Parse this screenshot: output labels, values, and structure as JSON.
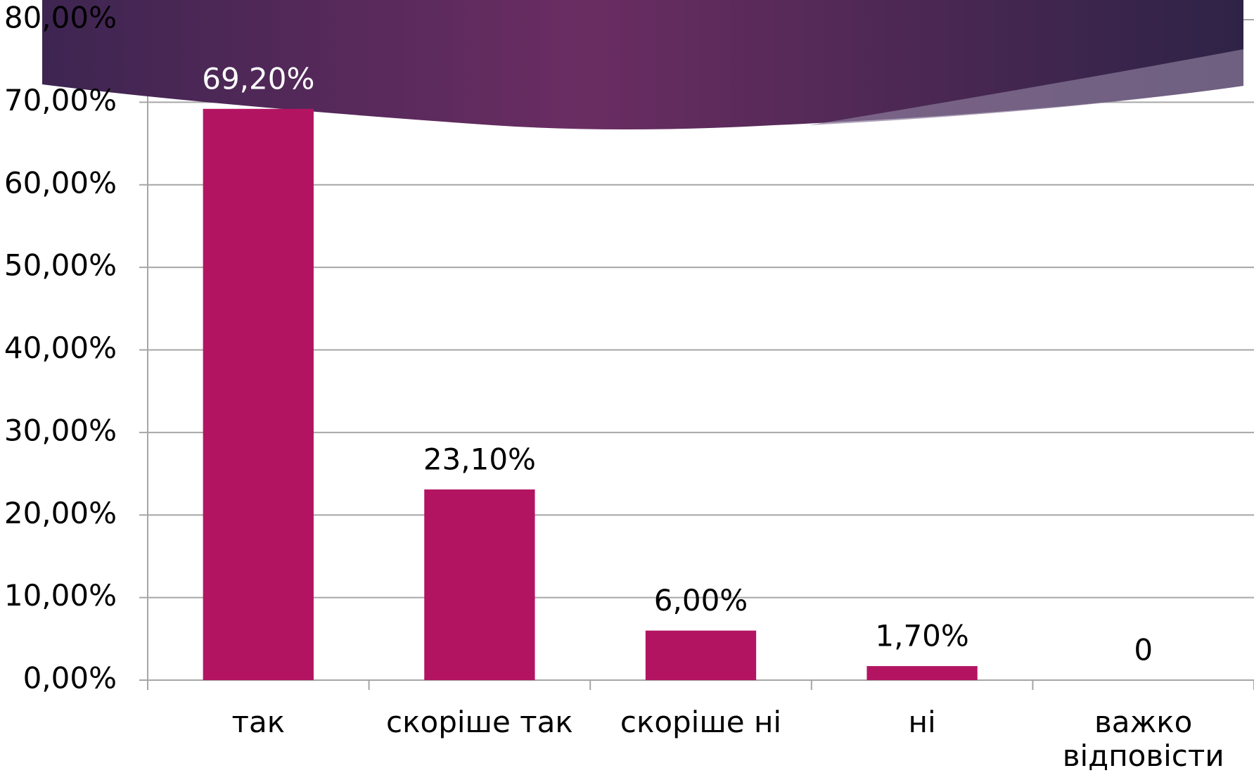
{
  "chart_data": {
    "type": "bar",
    "categories": [
      "так",
      "скоріше так",
      "скоріше ні",
      "ні",
      "важко відповісти"
    ],
    "values": [
      69.2,
      23.1,
      6.0,
      1.7,
      0
    ],
    "value_labels": [
      "69,20%",
      "23,10%",
      "6,00%",
      "1,70%",
      "0"
    ],
    "color": "#b31462",
    "ylim": [
      0,
      80
    ],
    "yticks": [
      {
        "value": 0,
        "label": "0,00%"
      },
      {
        "value": 10,
        "label": "10,00%"
      },
      {
        "value": 20,
        "label": "20,00%"
      },
      {
        "value": 30,
        "label": "30,00%"
      },
      {
        "value": 40,
        "label": "40,00%"
      },
      {
        "value": 50,
        "label": "50,00%"
      },
      {
        "value": 60,
        "label": "60,00%"
      },
      {
        "value": 70,
        "label": "70,00%"
      },
      {
        "value": 80,
        "label": "80,00%"
      }
    ],
    "grid": true
  }
}
